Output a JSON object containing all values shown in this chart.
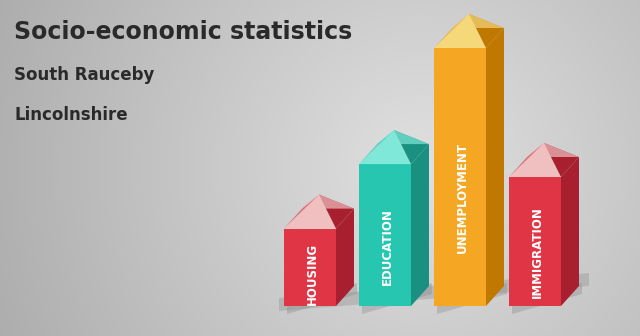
{
  "title": "Socio-economic statistics",
  "subtitle1": "South Rauceby",
  "subtitle2": "Lincolnshire",
  "categories": [
    "HOUSING",
    "EDUCATION",
    "UNEMPLOYMENT",
    "IMMIGRATION"
  ],
  "values": [
    0.3,
    0.55,
    1.0,
    0.5
  ],
  "bar_colors_front": [
    "#E03545",
    "#26C6B0",
    "#F5A623",
    "#E03545"
  ],
  "bar_colors_top": [
    "#F0C0C0",
    "#80E8D8",
    "#F5D87A",
    "#F0C0C0"
  ],
  "bar_colors_side": [
    "#A82030",
    "#1A9080",
    "#C07800",
    "#A82030"
  ],
  "text_color": "#2a2a2a",
  "label_color": "#ffffff",
  "title_fontsize": 17,
  "subtitle_fontsize": 12,
  "label_fontsize": 8.5
}
